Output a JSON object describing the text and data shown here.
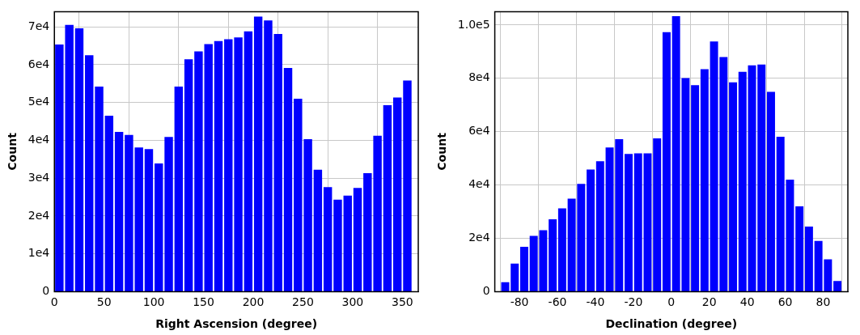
{
  "chart_data": [
    {
      "type": "histogram",
      "xlabel": "Right Ascension (degree)",
      "ylabel": "Count",
      "color": "#0000ff",
      "grid": true,
      "bins": [
        0,
        10,
        20,
        30,
        40,
        50,
        60,
        70,
        80,
        90,
        100,
        110,
        120,
        130,
        140,
        150,
        160,
        170,
        180,
        190,
        200,
        210,
        220,
        230,
        240,
        250,
        260,
        270,
        280,
        290,
        300,
        310,
        320,
        330,
        340,
        350,
        360
      ],
      "values": [
        65300,
        70500,
        69600,
        62500,
        54200,
        46500,
        42200,
        41400,
        38100,
        37700,
        33900,
        40900,
        54200,
        61400,
        63500,
        65400,
        66200,
        66700,
        67200,
        68800,
        72700,
        71700,
        68100,
        59100,
        51000,
        40300,
        32200,
        27600,
        24300,
        25400,
        27400,
        31300,
        41200,
        49300,
        51300,
        55800
      ],
      "xlim": [
        0,
        366
      ],
      "ylim": [
        0,
        74000
      ],
      "xticks": [
        0,
        50,
        100,
        150,
        200,
        250,
        300,
        350
      ],
      "yticks": [
        {
          "value": 0,
          "label": "0"
        },
        {
          "value": 10000,
          "label": "1e4"
        },
        {
          "value": 20000,
          "label": "2e4"
        },
        {
          "value": 30000,
          "label": "3e4"
        },
        {
          "value": 40000,
          "label": "4e4"
        },
        {
          "value": 50000,
          "label": "5e4"
        },
        {
          "value": 60000,
          "label": "6e4"
        },
        {
          "value": 70000,
          "label": "7e4"
        }
      ]
    },
    {
      "type": "histogram",
      "xlabel": "Declination (degree)",
      "ylabel": "Count",
      "color": "#0000ff",
      "grid": true,
      "bins": [
        -90,
        -85,
        -80,
        -75,
        -70,
        -65,
        -60,
        -55,
        -50,
        -45,
        -40,
        -35,
        -30,
        -25,
        -20,
        -15,
        -10,
        -5,
        0,
        5,
        10,
        15,
        20,
        25,
        30,
        35,
        40,
        45,
        50,
        55,
        60,
        65,
        70,
        75,
        80,
        85,
        90
      ],
      "values": [
        3500,
        10500,
        16800,
        20900,
        23000,
        27100,
        31200,
        34900,
        40400,
        45800,
        48900,
        54100,
        57200,
        51600,
        51900,
        51900,
        57500,
        97300,
        103300,
        80100,
        77400,
        83400,
        93800,
        88000,
        78500,
        82400,
        84900,
        85200,
        74900,
        58100,
        42000,
        32000,
        24400,
        19000,
        12100,
        4000
      ],
      "xlim": [
        -93,
        93
      ],
      "ylim": [
        0,
        105000
      ],
      "xticks": [
        -80,
        -60,
        -40,
        -20,
        0,
        20,
        40,
        60,
        80
      ],
      "yticks": [
        {
          "value": 0,
          "label": "0"
        },
        {
          "value": 20000,
          "label": "2e4"
        },
        {
          "value": 40000,
          "label": "4e4"
        },
        {
          "value": 60000,
          "label": "6e4"
        },
        {
          "value": 80000,
          "label": "8e4"
        },
        {
          "value": 100000,
          "label": "1.0e5"
        }
      ]
    }
  ]
}
